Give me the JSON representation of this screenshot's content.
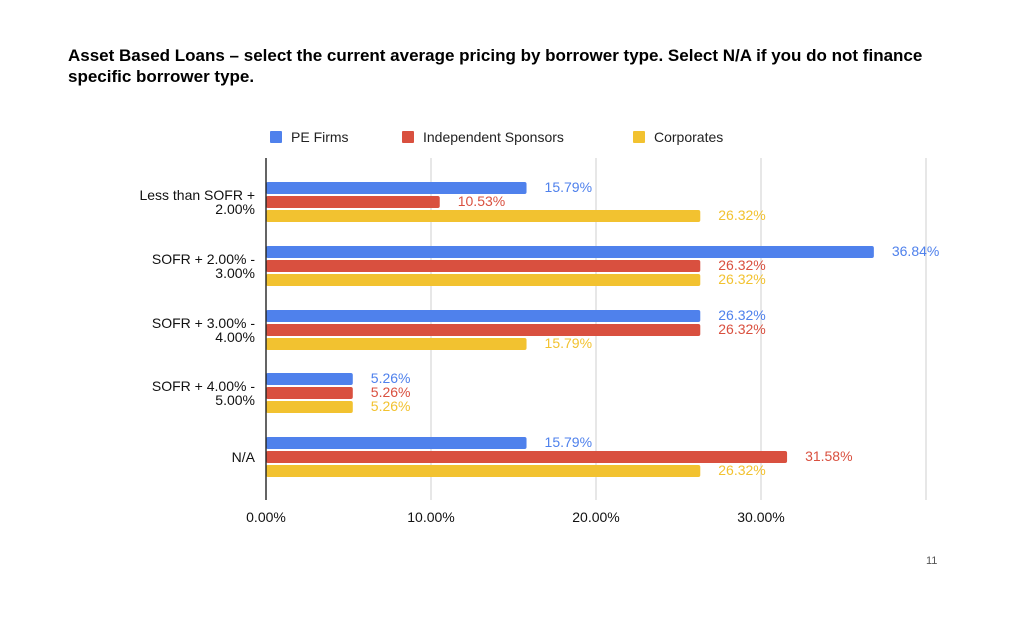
{
  "slide": {
    "title": "Asset Based Loans – select the current average pricing by borrower type. Select N/A if you do not finance specific borrower type.",
    "page_number": "11"
  },
  "chart_data": {
    "type": "bar",
    "orientation": "horizontal",
    "title": "",
    "xlabel": "",
    "ylabel": "",
    "categories": [
      [
        "Less than SOFR +",
        "2.00%"
      ],
      [
        "SOFR + 2.00% -",
        "3.00%"
      ],
      [
        "SOFR + 3.00% -",
        "4.00%"
      ],
      [
        "SOFR + 4.00% -",
        "5.00%"
      ],
      [
        "N/A"
      ]
    ],
    "series": [
      {
        "name": "PE Firms",
        "color": "#4f81ec",
        "values": [
          15.79,
          36.84,
          26.32,
          5.26,
          15.79
        ],
        "labels": [
          "15.79%",
          "36.84%",
          "26.32%",
          "5.26%",
          "15.79%"
        ]
      },
      {
        "name": "Independent Sponsors",
        "color": "#d9503f",
        "values": [
          10.53,
          26.32,
          26.32,
          5.26,
          31.58
        ],
        "labels": [
          "10.53%",
          "26.32%",
          "26.32%",
          "5.26%",
          "31.58%"
        ]
      },
      {
        "name": "Corporates",
        "color": "#f2c230",
        "values": [
          26.32,
          26.32,
          15.79,
          5.26,
          26.32
        ],
        "labels": [
          "26.32%",
          "26.32%",
          "15.79%",
          "5.26%",
          "26.32%"
        ]
      }
    ],
    "x_ticks": [
      0,
      10,
      20,
      30,
      40
    ],
    "x_tick_labels": [
      "0.00%",
      "10.00%",
      "20.00%",
      "30.00%",
      ""
    ],
    "xlim": [
      0,
      40
    ],
    "grid": "vertical",
    "legend_position": "top-center"
  }
}
